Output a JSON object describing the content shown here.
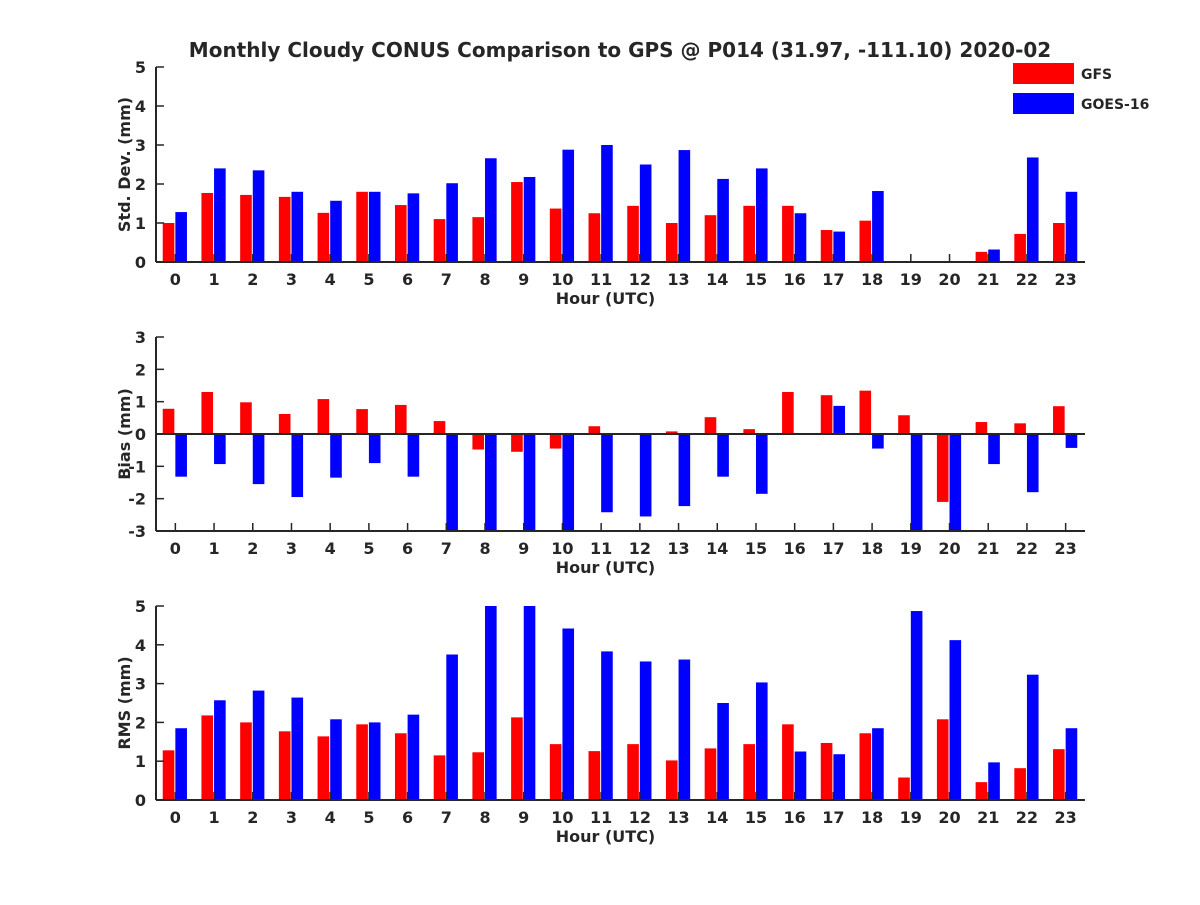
{
  "figure": {
    "title": "Monthly Cloudy CONUS Comparison to GPS @ P014 (31.97, -111.10) 2020-02"
  },
  "legend": {
    "placement": "top-right",
    "items": [
      {
        "label": "GFS",
        "color": "#ff0000"
      },
      {
        "label": "GOES-16",
        "color": "#0000ff"
      }
    ]
  },
  "chart_data": [
    {
      "type": "bar",
      "xlabel": "Hour (UTC)",
      "ylabel": "Std. Dev. (mm)",
      "ylim": [
        0,
        5
      ],
      "yticks": [
        0,
        1,
        2,
        3,
        4,
        5
      ],
      "categories": [
        "0",
        "1",
        "2",
        "3",
        "4",
        "5",
        "6",
        "7",
        "8",
        "9",
        "10",
        "11",
        "12",
        "13",
        "14",
        "15",
        "16",
        "17",
        "18",
        "19",
        "20",
        "21",
        "22",
        "23"
      ],
      "series": [
        {
          "name": "GFS",
          "color": "#ff0000",
          "values": [
            1.0,
            1.77,
            1.72,
            1.67,
            1.26,
            1.8,
            1.46,
            1.1,
            1.15,
            2.05,
            1.37,
            1.25,
            1.44,
            1.0,
            1.2,
            1.44,
            1.44,
            0.82,
            1.06,
            0,
            0,
            0.26,
            0.72,
            1.0
          ]
        },
        {
          "name": "GOES-16",
          "color": "#0000ff",
          "values": [
            1.28,
            2.4,
            2.35,
            1.8,
            1.57,
            1.8,
            1.76,
            2.02,
            2.66,
            2.18,
            2.88,
            3.0,
            2.5,
            2.87,
            2.13,
            2.4,
            1.25,
            0.78,
            1.82,
            0,
            0,
            0.32,
            2.68,
            1.8
          ]
        }
      ]
    },
    {
      "type": "bar",
      "xlabel": "Hour (UTC)",
      "ylabel": "Bias (mm)",
      "ylim": [
        -3,
        3
      ],
      "yticks": [
        -3,
        -2,
        -1,
        0,
        1,
        2,
        3
      ],
      "zero_line": true,
      "categories": [
        "0",
        "1",
        "2",
        "3",
        "4",
        "5",
        "6",
        "7",
        "8",
        "9",
        "10",
        "11",
        "12",
        "13",
        "14",
        "15",
        "16",
        "17",
        "18",
        "19",
        "20",
        "21",
        "22",
        "23"
      ],
      "series": [
        {
          "name": "GFS",
          "color": "#ff0000",
          "values": [
            0.78,
            1.3,
            0.98,
            0.62,
            1.08,
            0.77,
            0.9,
            0.4,
            -0.48,
            -0.55,
            -0.45,
            0.24,
            0,
            0.08,
            0.52,
            0.15,
            1.3,
            1.2,
            1.34,
            0.58,
            -2.1,
            0.37,
            0.33,
            0.86
          ]
        },
        {
          "name": "GOES-16",
          "color": "#0000ff",
          "values": [
            -1.32,
            -0.93,
            -1.55,
            -1.95,
            -1.35,
            -0.9,
            -1.32,
            -3.0,
            -3.0,
            -3.0,
            -3.0,
            -2.42,
            -2.55,
            -2.23,
            -1.32,
            -1.85,
            0.03,
            0.87,
            -0.45,
            -3.0,
            -3.0,
            -0.93,
            -1.8,
            -0.43
          ]
        }
      ]
    },
    {
      "type": "bar",
      "xlabel": "Hour (UTC)",
      "ylabel": "RMS (mm)",
      "ylim": [
        0,
        5
      ],
      "yticks": [
        0,
        1,
        2,
        3,
        4,
        5
      ],
      "categories": [
        "0",
        "1",
        "2",
        "3",
        "4",
        "5",
        "6",
        "7",
        "8",
        "9",
        "10",
        "11",
        "12",
        "13",
        "14",
        "15",
        "16",
        "17",
        "18",
        "19",
        "20",
        "21",
        "22",
        "23"
      ],
      "series": [
        {
          "name": "GFS",
          "color": "#ff0000",
          "values": [
            1.28,
            2.18,
            2.0,
            1.77,
            1.64,
            1.95,
            1.72,
            1.15,
            1.23,
            2.13,
            1.44,
            1.26,
            1.44,
            1.02,
            1.33,
            1.44,
            1.95,
            1.47,
            1.72,
            0.58,
            2.08,
            0.46,
            0.82,
            1.31
          ]
        },
        {
          "name": "GOES-16",
          "color": "#0000ff",
          "values": [
            1.85,
            2.57,
            2.82,
            2.64,
            2.08,
            2.0,
            2.2,
            3.75,
            5.0,
            5.0,
            4.42,
            3.83,
            3.57,
            3.62,
            2.5,
            3.03,
            1.25,
            1.18,
            1.85,
            4.87,
            4.12,
            0.97,
            3.23,
            1.85
          ]
        }
      ]
    }
  ]
}
